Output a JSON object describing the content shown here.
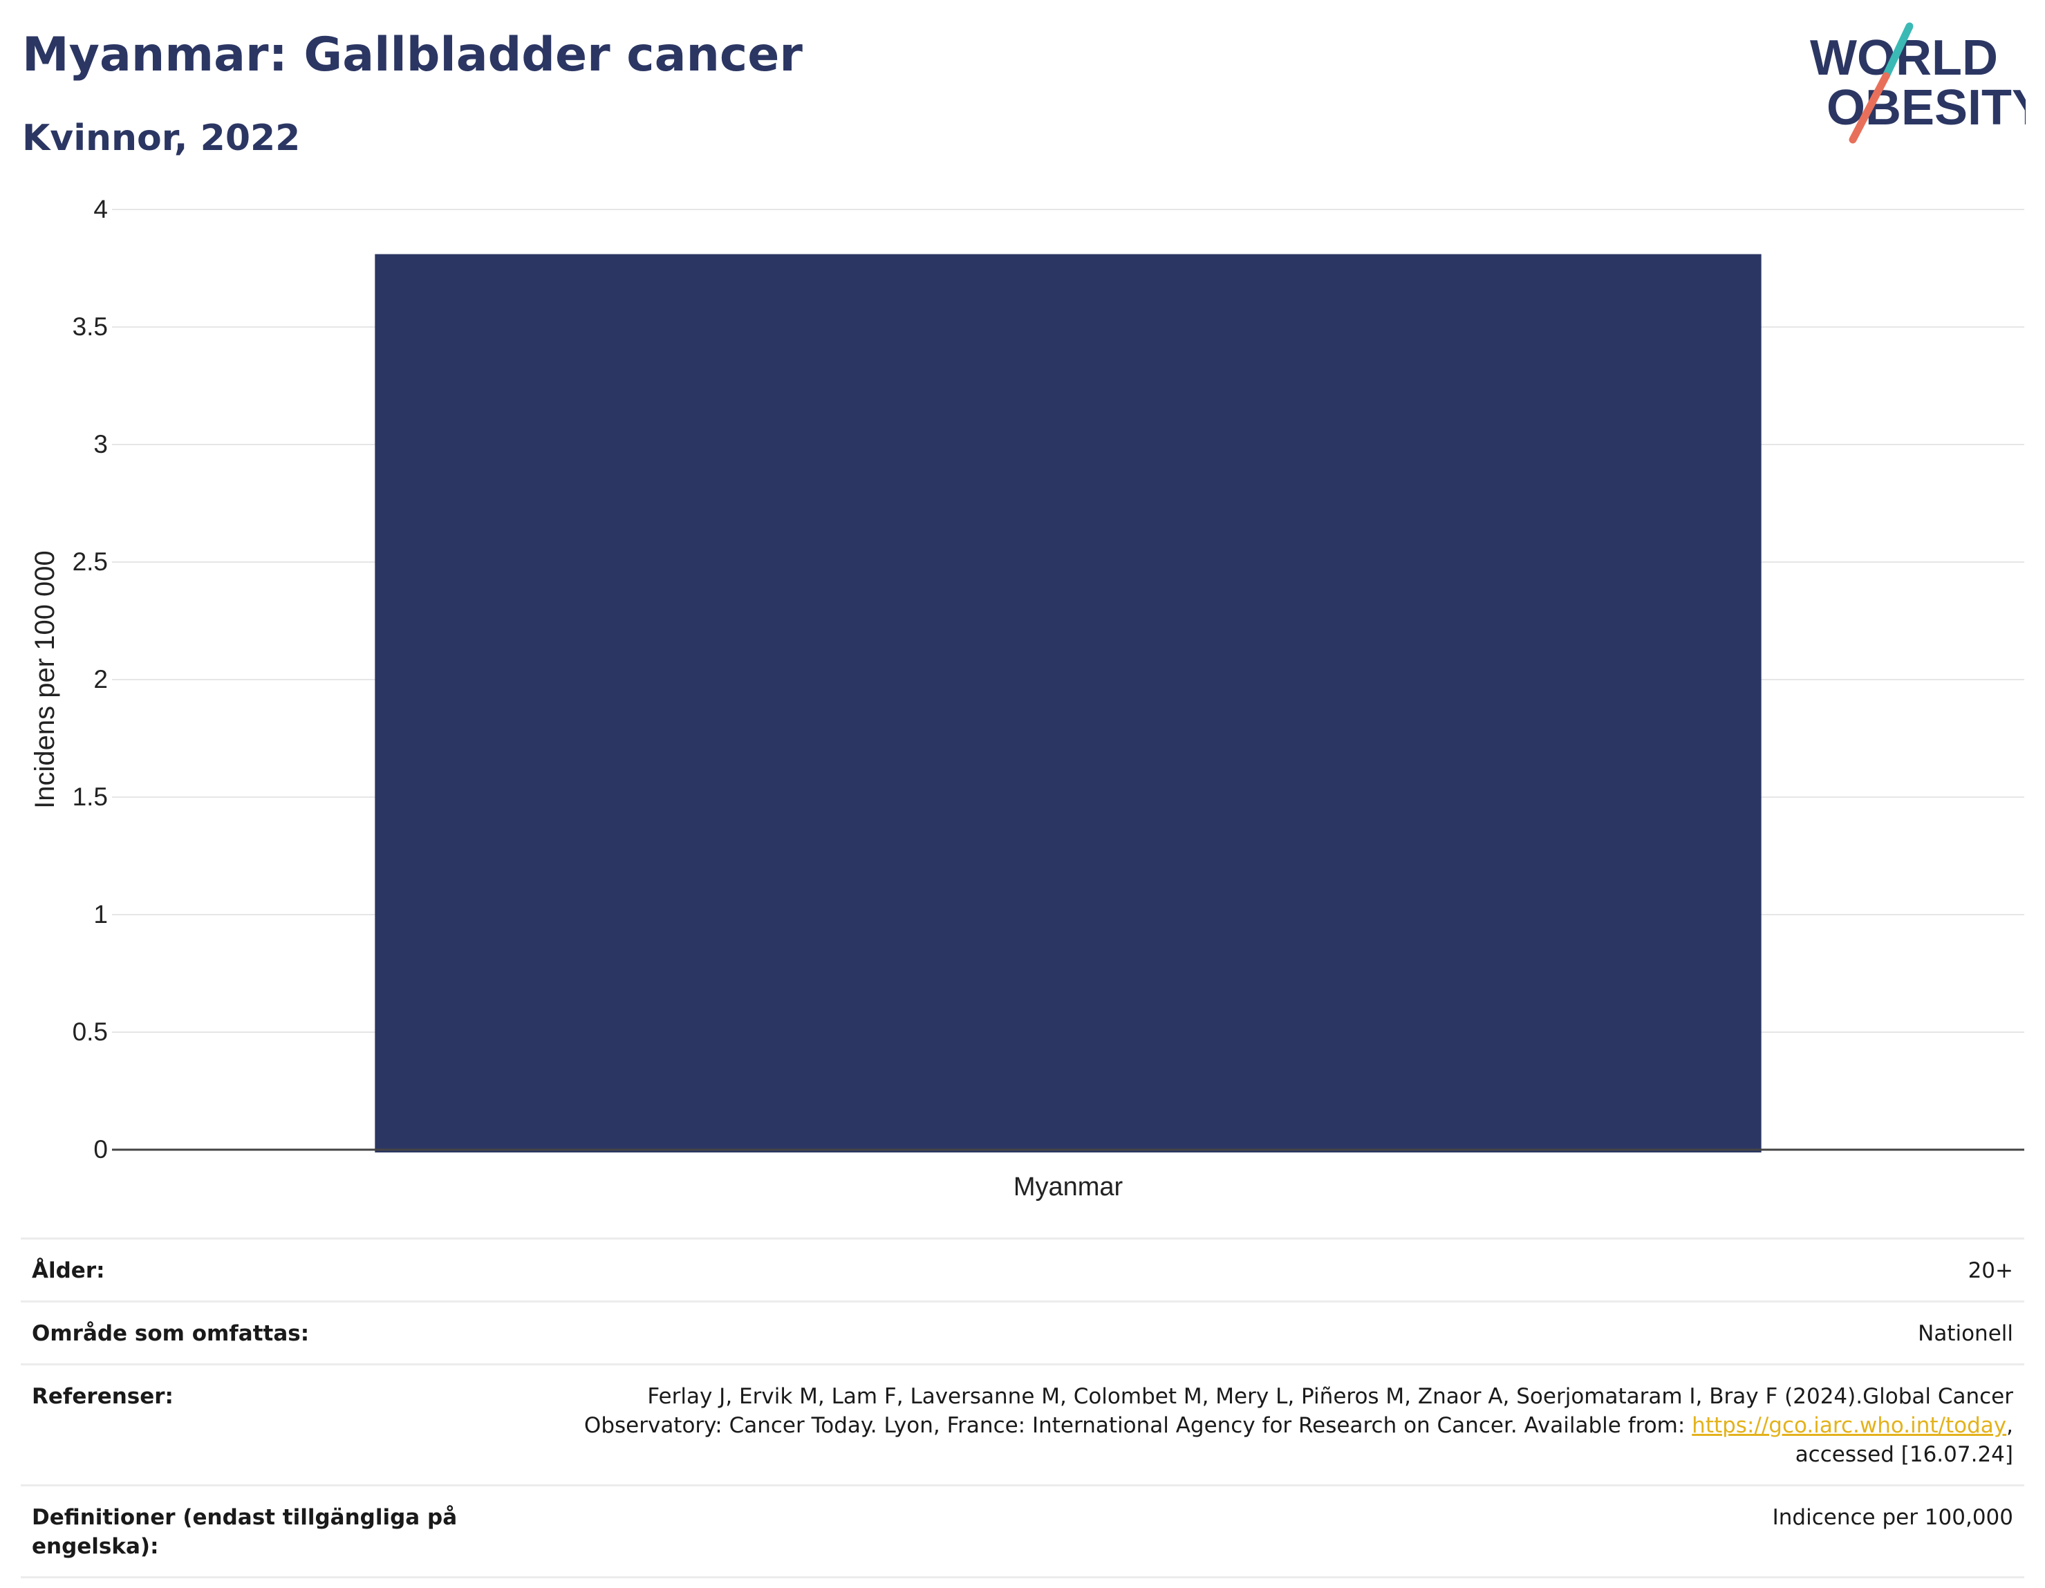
{
  "header": {
    "title": "Myanmar: Gallbladder cancer",
    "subtitle": "Kvinnor, 2022"
  },
  "logo": {
    "line1": "WORLD",
    "line2": "OBESITY",
    "accent_teal": "#3bb9b5",
    "accent_coral": "#e8705a",
    "color": "#2b3663"
  },
  "chart_data": {
    "type": "bar",
    "categories": [
      "Myanmar"
    ],
    "values": [
      3.81
    ],
    "ylabel": "Incidens per 100 000",
    "xlabel": "",
    "ylim": [
      0,
      4
    ],
    "yticks": [
      0,
      0.5,
      1,
      1.5,
      2,
      2.5,
      3,
      3.5,
      4
    ],
    "ytick_labels": [
      "0",
      "0.5",
      "1",
      "1.5",
      "2",
      "2.5",
      "3",
      "3.5",
      "4"
    ],
    "bar_color": "#2b3663",
    "grid": true
  },
  "meta": {
    "age_label": "Ålder:",
    "age_value": "20+",
    "area_label": "Område som omfattas:",
    "area_value": "Nationell",
    "refs_label": "Referenser:",
    "refs_text_1": "Ferlay J, Ervik M, Lam F, Laversanne M, Colombet M, Mery L, Piñeros M, Znaor A, Soerjomataram I, Bray F (2024).Global Cancer Observatory: Cancer Today. Lyon, France: International Agency for Research on Cancer. Available from: ",
    "refs_link": "https://gco.iarc.who.int/today",
    "refs_text_2": ", accessed [16.07.24]",
    "defs_label": "Definitioner (endast tillgängliga på engelska):",
    "defs_value": "Indicence per 100,000"
  }
}
